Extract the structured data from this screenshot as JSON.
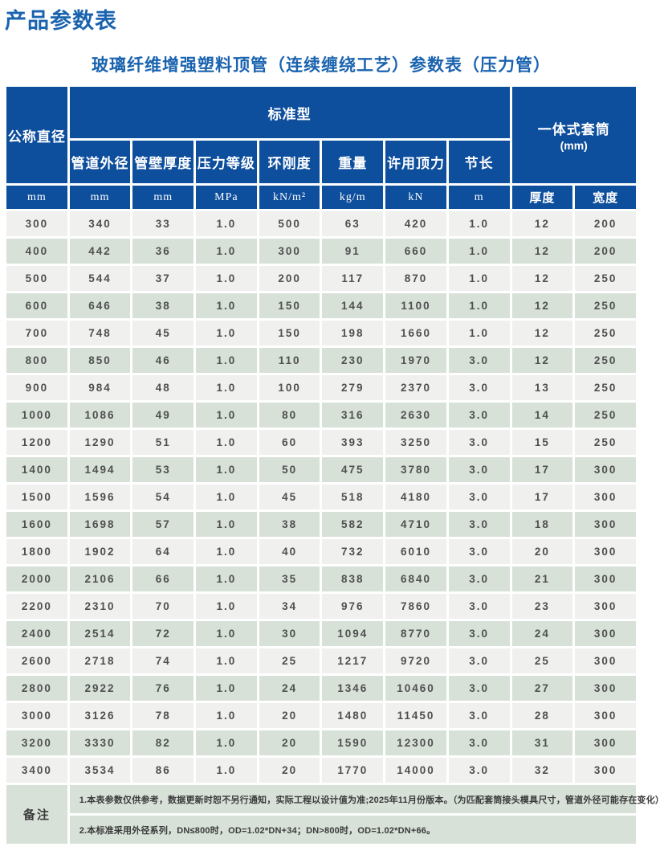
{
  "page": {
    "title": "产品参数表",
    "subtitle": "玻璃纤维增强塑料顶管（连续缠绕工艺）参数表（压力管）"
  },
  "colors": {
    "header_blue": "#0e4f9d",
    "title_blue": "#1a63af",
    "row_odd": "#f0f0ee",
    "row_even": "#d7e1d8"
  },
  "table": {
    "header": {
      "col1": "公称直径",
      "group_standard": "标准型",
      "group_sleeve_line1": "一体式套筒",
      "group_sleeve_line2": "(mm)",
      "sub_headers": [
        "管道外径",
        "管壁厚度",
        "压力等级",
        "环刚度",
        "重量",
        "许用顶力",
        "节长"
      ],
      "units": [
        "mm",
        "mm",
        "mm",
        "MPa",
        "kN/m²",
        "kg/m",
        "kN",
        "m",
        "厚度",
        "宽度"
      ]
    },
    "rows": [
      [
        "300",
        "340",
        "33",
        "1.0",
        "500",
        "63",
        "420",
        "1.0",
        "12",
        "200"
      ],
      [
        "400",
        "442",
        "36",
        "1.0",
        "300",
        "91",
        "660",
        "1.0",
        "12",
        "200"
      ],
      [
        "500",
        "544",
        "37",
        "1.0",
        "200",
        "117",
        "870",
        "1.0",
        "12",
        "250"
      ],
      [
        "600",
        "646",
        "38",
        "1.0",
        "150",
        "144",
        "1100",
        "1.0",
        "12",
        "250"
      ],
      [
        "700",
        "748",
        "45",
        "1.0",
        "150",
        "198",
        "1660",
        "1.0",
        "12",
        "250"
      ],
      [
        "800",
        "850",
        "46",
        "1.0",
        "110",
        "230",
        "1970",
        "3.0",
        "12",
        "250"
      ],
      [
        "900",
        "984",
        "48",
        "1.0",
        "100",
        "279",
        "2370",
        "3.0",
        "13",
        "250"
      ],
      [
        "1000",
        "1086",
        "49",
        "1.0",
        "80",
        "316",
        "2630",
        "3.0",
        "14",
        "250"
      ],
      [
        "1200",
        "1290",
        "51",
        "1.0",
        "60",
        "393",
        "3250",
        "3.0",
        "15",
        "250"
      ],
      [
        "1400",
        "1494",
        "53",
        "1.0",
        "50",
        "475",
        "3780",
        "3.0",
        "17",
        "300"
      ],
      [
        "1500",
        "1596",
        "54",
        "1.0",
        "45",
        "518",
        "4180",
        "3.0",
        "17",
        "300"
      ],
      [
        "1600",
        "1698",
        "57",
        "1.0",
        "38",
        "582",
        "4710",
        "3.0",
        "18",
        "300"
      ],
      [
        "1800",
        "1902",
        "64",
        "1.0",
        "40",
        "732",
        "6010",
        "3.0",
        "20",
        "300"
      ],
      [
        "2000",
        "2106",
        "66",
        "1.0",
        "35",
        "838",
        "6840",
        "3.0",
        "21",
        "300"
      ],
      [
        "2200",
        "2310",
        "70",
        "1.0",
        "34",
        "976",
        "7860",
        "3.0",
        "23",
        "300"
      ],
      [
        "2400",
        "2514",
        "72",
        "1.0",
        "30",
        "1094",
        "8770",
        "3.0",
        "24",
        "300"
      ],
      [
        "2600",
        "2718",
        "74",
        "1.0",
        "25",
        "1217",
        "9720",
        "3.0",
        "25",
        "300"
      ],
      [
        "2800",
        "2922",
        "76",
        "1.0",
        "24",
        "1346",
        "10460",
        "3.0",
        "27",
        "300"
      ],
      [
        "3000",
        "3126",
        "78",
        "1.0",
        "20",
        "1480",
        "11450",
        "3.0",
        "28",
        "300"
      ],
      [
        "3200",
        "3330",
        "82",
        "1.0",
        "20",
        "1590",
        "12300",
        "3.0",
        "31",
        "300"
      ],
      [
        "3400",
        "3534",
        "86",
        "1.0",
        "20",
        "1770",
        "14000",
        "3.0",
        "32",
        "300"
      ]
    ],
    "notes": {
      "label": "备注",
      "items": [
        "1.本表参数仅供参考，数据更新时恕不另行通知，实际工程以设计值为准;2025年11月份版本。（为匹配套筒接头模具尺寸，管道外径可能存在变化）",
        "2.本标准采用外径系列，DN≤800时，OD=1.02*DN+34；DN>800时，OD=1.02*DN+66。"
      ]
    }
  }
}
